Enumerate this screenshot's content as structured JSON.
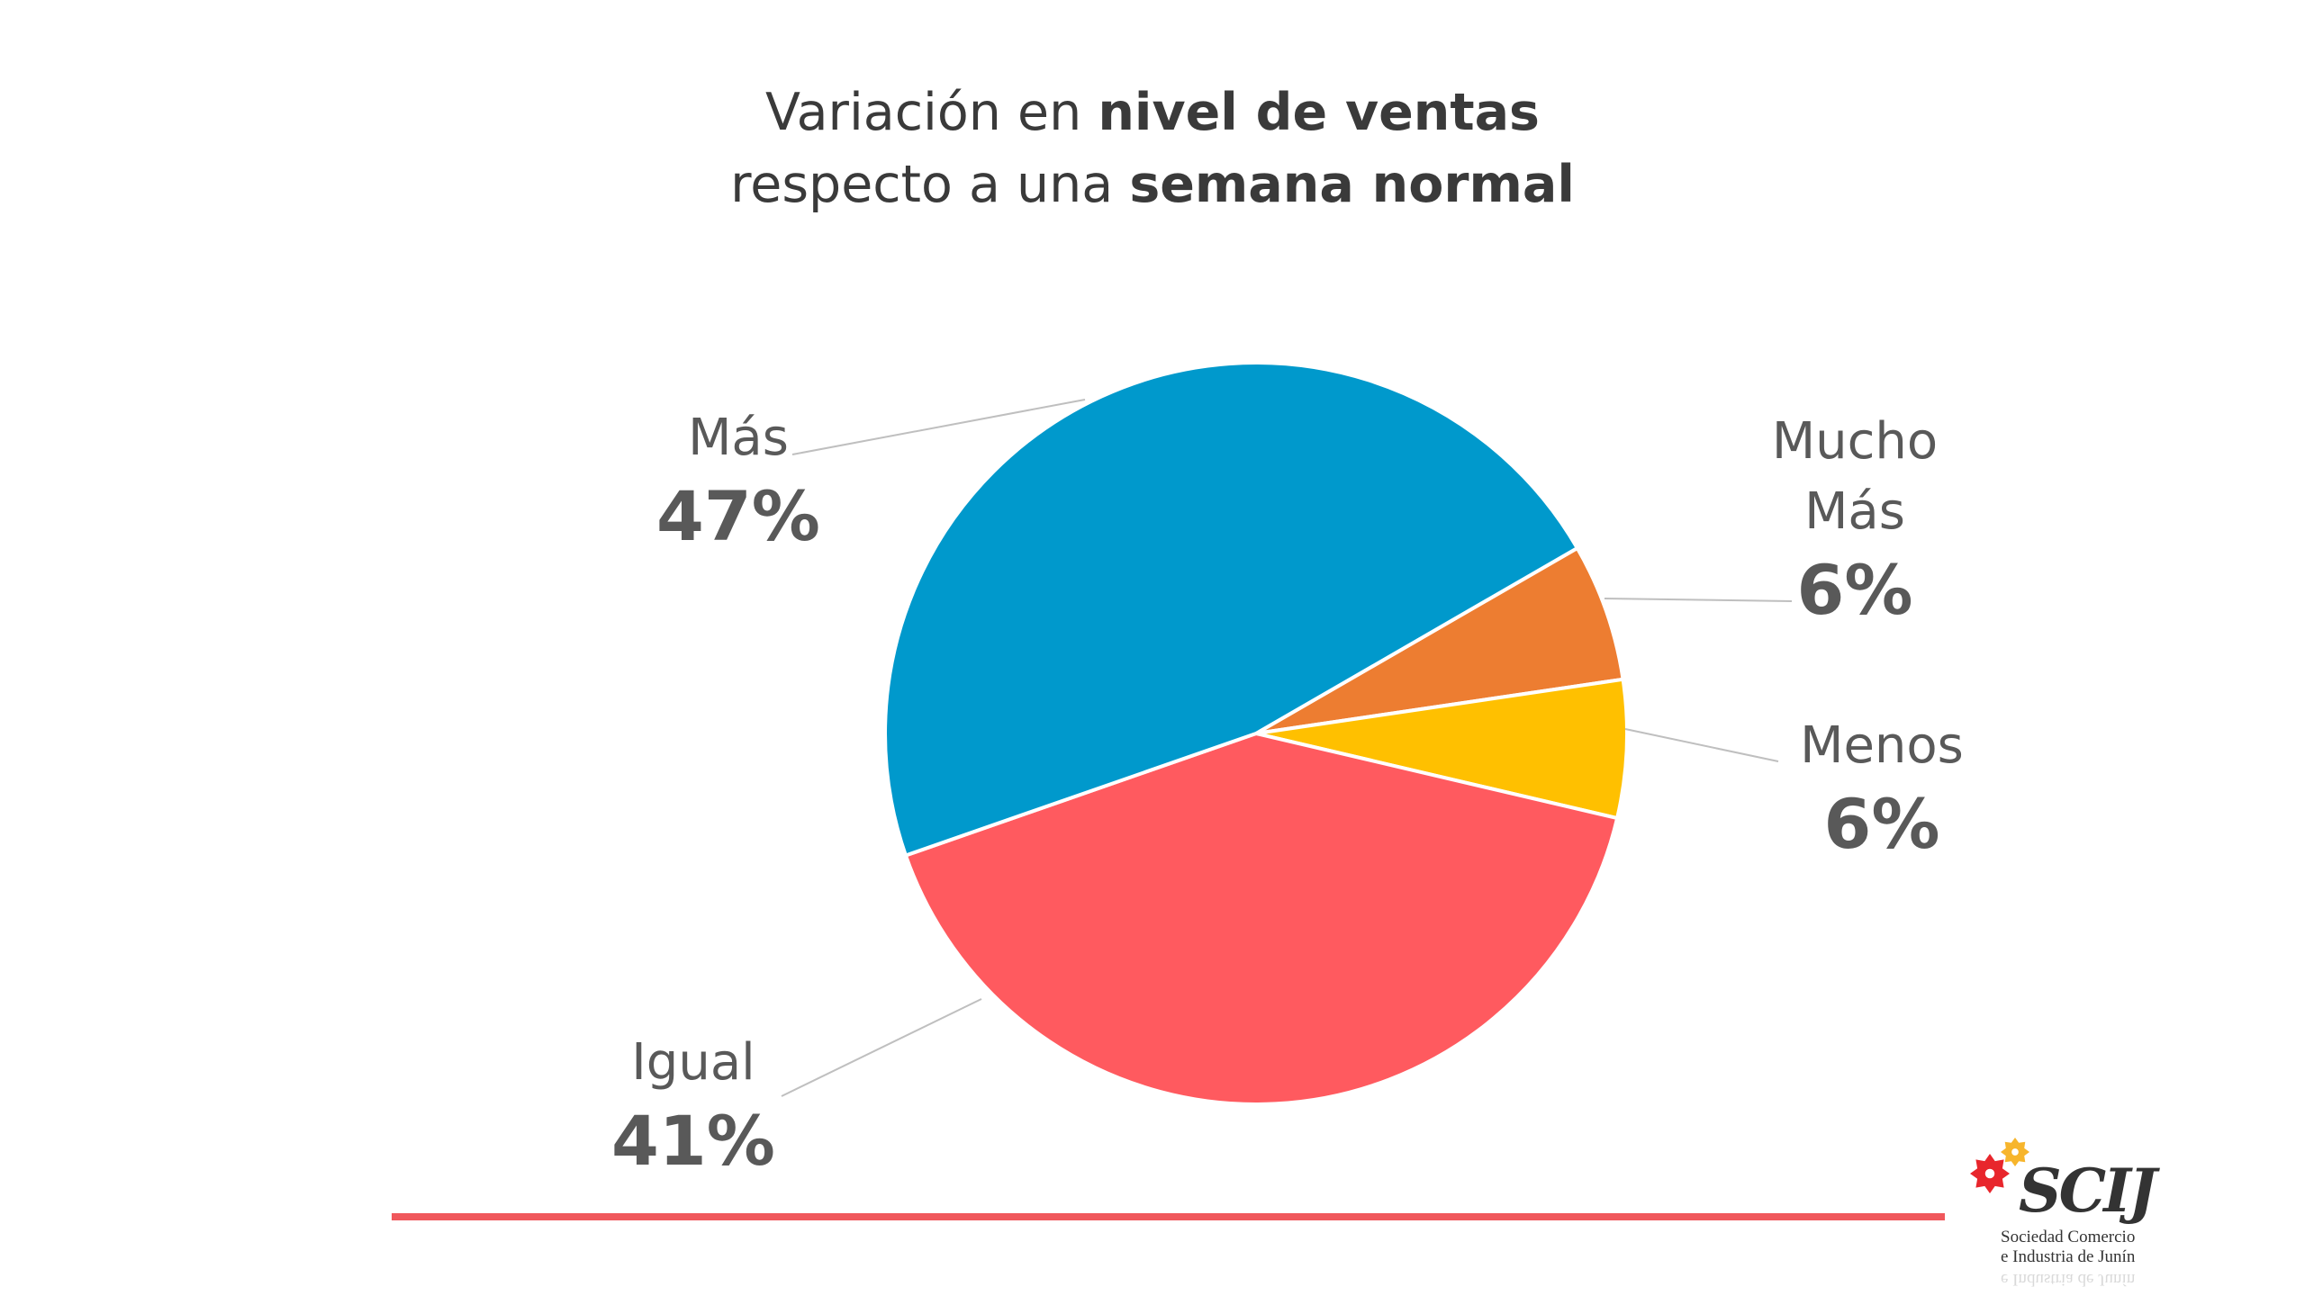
{
  "title": {
    "line1_prefix": "Variación en ",
    "line1_bold": "nivel de ventas",
    "line2_prefix": "respecto a una ",
    "line2_bold": "semana normal"
  },
  "chart_data": {
    "type": "pie",
    "title": "Variación en nivel de ventas respecto a una semana normal",
    "categories": [
      "Mucho Más",
      "Menos",
      "Igual",
      "Más"
    ],
    "values": [
      6,
      6,
      41,
      47
    ],
    "labels": [
      "6%",
      "6%",
      "41%",
      "47%"
    ],
    "colors": [
      "#ed7d31",
      "#ffc000",
      "#ff5a5f",
      "#0099cc"
    ],
    "start_angle_deg": 60,
    "direction": "clockwise"
  },
  "labels": {
    "mas": {
      "name": "Más",
      "pct": "47%"
    },
    "mucho": {
      "name_line1": "Mucho",
      "name_line2": "Más",
      "pct": "6%"
    },
    "menos": {
      "name": "Menos",
      "pct": "6%"
    },
    "igual": {
      "name": "Igual",
      "pct": "41%"
    }
  },
  "logo": {
    "brand": "SCIJ",
    "line1": "Sociedad  Comercio",
    "line2": "e  Industria de Junín",
    "mark_colors": [
      "#e8262c",
      "#f7b52c"
    ]
  },
  "accent_rule_color": "#f0585c"
}
